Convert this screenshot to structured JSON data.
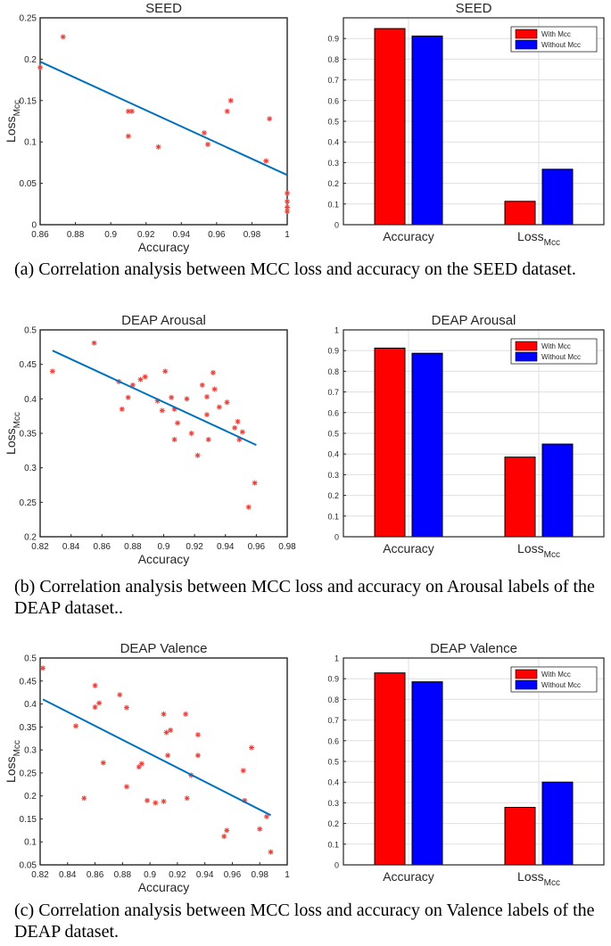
{
  "colors": {
    "fit_line": "#0072BD",
    "scatter_marker": "#E8403A",
    "with_mcc": "#FF0000",
    "without_mcc": "#0000FF",
    "grid": "#DFDFDF"
  },
  "panels": [
    {
      "caption": "(a) Correlation analysis between MCC loss and accuracy on the SEED dataset.",
      "scatter": {
        "type": "scatter",
        "title": "SEED",
        "xlabel": "Accuracy",
        "ylabel_main": "Loss",
        "ylabel_sub": "Mcc",
        "xlim": [
          0.86,
          1
        ],
        "ylim": [
          0,
          0.25
        ],
        "grid": false,
        "xticks": [
          0.86,
          0.88,
          0.9,
          0.92,
          0.94,
          0.96,
          0.98,
          1
        ],
        "xtick_labels": [
          "0.86",
          "0.88",
          "0.9",
          "0.92",
          "0.94",
          "0.96",
          "0.98",
          "1"
        ],
        "yticks": [
          0,
          0.05,
          0.1,
          0.15,
          0.2,
          0.25
        ],
        "ytick_labels": [
          "0",
          "0.05",
          "0.1",
          "0.15",
          "0.2",
          "0.25"
        ],
        "points": [
          [
            0.86,
            0.19
          ],
          [
            0.873,
            0.227
          ],
          [
            0.91,
            0.137
          ],
          [
            0.912,
            0.137
          ],
          [
            0.91,
            0.107
          ],
          [
            0.927,
            0.094
          ],
          [
            0.953,
            0.111
          ],
          [
            0.955,
            0.097
          ],
          [
            0.966,
            0.137
          ],
          [
            0.968,
            0.15
          ],
          [
            0.99,
            0.128
          ],
          [
            0.988,
            0.077
          ],
          [
            1.0,
            0.038
          ],
          [
            1.0,
            0.028
          ],
          [
            1.0,
            0.021
          ],
          [
            1.0,
            0.016
          ]
        ],
        "fit": [
          [
            0.86,
            0.197
          ],
          [
            1.0,
            0.06
          ]
        ]
      },
      "bar": {
        "type": "bar",
        "title": "SEED",
        "categories": [
          "Accuracy",
          "Loss"
        ],
        "category_subs": [
          "",
          "Mcc"
        ],
        "ylim": [
          0,
          1
        ],
        "grid": true,
        "legend_position": "top-right",
        "yticks": [
          0,
          0.1,
          0.2,
          0.3,
          0.4,
          0.5,
          0.6,
          0.7,
          0.8,
          0.9
        ],
        "ytick_labels": [
          "0",
          "0.1",
          "0.2",
          "0.3",
          "0.4",
          "0.5",
          "0.6",
          "0.7",
          "0.8",
          "0.9"
        ],
        "series": [
          {
            "name": "With Mcc",
            "values": [
              0.948,
              0.113
            ]
          },
          {
            "name": "Without Mcc",
            "values": [
              0.912,
              0.268
            ]
          }
        ]
      }
    },
    {
      "caption": "(b) Correlation analysis between MCC loss and accuracy on Arousal labels of the DEAP dataset..",
      "scatter": {
        "type": "scatter",
        "title": "DEAP Arousal",
        "xlabel": "Accuracy",
        "ylabel_main": "Loss",
        "ylabel_sub": "Mcc",
        "xlim": [
          0.82,
          0.98
        ],
        "ylim": [
          0.2,
          0.5
        ],
        "grid": false,
        "xticks": [
          0.82,
          0.84,
          0.86,
          0.88,
          0.9,
          0.92,
          0.94,
          0.96,
          0.98
        ],
        "xtick_labels": [
          "0.82",
          "0.84",
          "0.86",
          "0.88",
          "0.9",
          "0.92",
          "0.94",
          "0.96",
          "0.98"
        ],
        "yticks": [
          0.2,
          0.25,
          0.3,
          0.35,
          0.4,
          0.45,
          0.5
        ],
        "ytick_labels": [
          "0.2",
          "0.25",
          "0.3",
          "0.35",
          "0.4",
          "0.45",
          "0.5"
        ],
        "points": [
          [
            0.828,
            0.44
          ],
          [
            0.855,
            0.481
          ],
          [
            0.871,
            0.425
          ],
          [
            0.873,
            0.385
          ],
          [
            0.877,
            0.402
          ],
          [
            0.88,
            0.42
          ],
          [
            0.885,
            0.428
          ],
          [
            0.888,
            0.432
          ],
          [
            0.896,
            0.397
          ],
          [
            0.899,
            0.383
          ],
          [
            0.901,
            0.44
          ],
          [
            0.905,
            0.402
          ],
          [
            0.907,
            0.385
          ],
          [
            0.907,
            0.341
          ],
          [
            0.909,
            0.365
          ],
          [
            0.915,
            0.4
          ],
          [
            0.918,
            0.35
          ],
          [
            0.922,
            0.318
          ],
          [
            0.925,
            0.42
          ],
          [
            0.928,
            0.403
          ],
          [
            0.928,
            0.377
          ],
          [
            0.929,
            0.341
          ],
          [
            0.932,
            0.438
          ],
          [
            0.933,
            0.414
          ],
          [
            0.936,
            0.388
          ],
          [
            0.941,
            0.395
          ],
          [
            0.946,
            0.358
          ],
          [
            0.948,
            0.367
          ],
          [
            0.949,
            0.341
          ],
          [
            0.951,
            0.352
          ],
          [
            0.955,
            0.243
          ],
          [
            0.959,
            0.278
          ]
        ],
        "fit": [
          [
            0.828,
            0.47
          ],
          [
            0.96,
            0.333
          ]
        ]
      },
      "bar": {
        "type": "bar",
        "title": "DEAP Arousal",
        "categories": [
          "Accuracy",
          "Loss"
        ],
        "category_subs": [
          "",
          "Mcc"
        ],
        "ylim": [
          0,
          1
        ],
        "grid": true,
        "legend_position": "top-right",
        "yticks": [
          0,
          0.1,
          0.2,
          0.3,
          0.4,
          0.5,
          0.6,
          0.7,
          0.8,
          0.9,
          1
        ],
        "ytick_labels": [
          "0",
          "0.1",
          "0.2",
          "0.3",
          "0.4",
          "0.5",
          "0.6",
          "0.7",
          "0.8",
          "0.9",
          "1"
        ],
        "series": [
          {
            "name": "With Mcc",
            "values": [
              0.912,
              0.385
            ]
          },
          {
            "name": "Without Mcc",
            "values": [
              0.887,
              0.448
            ]
          }
        ]
      }
    },
    {
      "caption": "(c) Correlation analysis between MCC loss and accuracy on Valence labels of the DEAP dataset.",
      "scatter": {
        "type": "scatter",
        "title": "DEAP Valence",
        "xlabel": "Accuracy",
        "ylabel_main": "Loss",
        "ylabel_sub": "Mcc",
        "xlim": [
          0.82,
          1
        ],
        "ylim": [
          0.05,
          0.5
        ],
        "grid": false,
        "xticks": [
          0.82,
          0.84,
          0.86,
          0.88,
          0.9,
          0.92,
          0.94,
          0.96,
          0.98,
          1
        ],
        "xtick_labels": [
          "0.82",
          "0.84",
          "0.86",
          "0.88",
          "0.9",
          "0.92",
          "0.94",
          "0.96",
          "0.98",
          "1"
        ],
        "yticks": [
          0.05,
          0.1,
          0.15,
          0.2,
          0.25,
          0.3,
          0.35,
          0.4,
          0.45,
          0.5
        ],
        "ytick_labels": [
          "0.05",
          "0.1",
          "0.15",
          "0.2",
          "0.25",
          "0.3",
          "0.35",
          "0.4",
          "0.45",
          "0.5"
        ],
        "points": [
          [
            0.822,
            0.478
          ],
          [
            0.846,
            0.352
          ],
          [
            0.852,
            0.195
          ],
          [
            0.86,
            0.44
          ],
          [
            0.86,
            0.393
          ],
          [
            0.863,
            0.402
          ],
          [
            0.866,
            0.272
          ],
          [
            0.878,
            0.42
          ],
          [
            0.883,
            0.392
          ],
          [
            0.883,
            0.22
          ],
          [
            0.892,
            0.263
          ],
          [
            0.894,
            0.27
          ],
          [
            0.898,
            0.19
          ],
          [
            0.904,
            0.185
          ],
          [
            0.91,
            0.378
          ],
          [
            0.91,
            0.188
          ],
          [
            0.912,
            0.338
          ],
          [
            0.913,
            0.288
          ],
          [
            0.915,
            0.343
          ],
          [
            0.926,
            0.378
          ],
          [
            0.927,
            0.195
          ],
          [
            0.93,
            0.245
          ],
          [
            0.935,
            0.333
          ],
          [
            0.935,
            0.288
          ],
          [
            0.954,
            0.112
          ],
          [
            0.956,
            0.125
          ],
          [
            0.968,
            0.255
          ],
          [
            0.969,
            0.19
          ],
          [
            0.974,
            0.305
          ],
          [
            0.98,
            0.128
          ],
          [
            0.985,
            0.155
          ],
          [
            0.988,
            0.078
          ]
        ],
        "fit": [
          [
            0.822,
            0.41
          ],
          [
            0.988,
            0.158
          ]
        ]
      },
      "bar": {
        "type": "bar",
        "title": "DEAP Valence",
        "categories": [
          "Accuracy",
          "Loss"
        ],
        "category_subs": [
          "",
          "Mcc"
        ],
        "ylim": [
          0,
          1
        ],
        "grid": true,
        "legend_position": "top-right",
        "yticks": [
          0,
          0.1,
          0.2,
          0.3,
          0.4,
          0.5,
          0.6,
          0.7,
          0.8,
          0.9,
          1
        ],
        "ytick_labels": [
          "0",
          "0.1",
          "0.2",
          "0.3",
          "0.4",
          "0.5",
          "0.6",
          "0.7",
          "0.8",
          "0.9",
          "1"
        ],
        "series": [
          {
            "name": "With Mcc",
            "values": [
              0.928,
              0.278
            ]
          },
          {
            "name": "Without Mcc",
            "values": [
              0.885,
              0.4
            ]
          }
        ]
      }
    }
  ]
}
